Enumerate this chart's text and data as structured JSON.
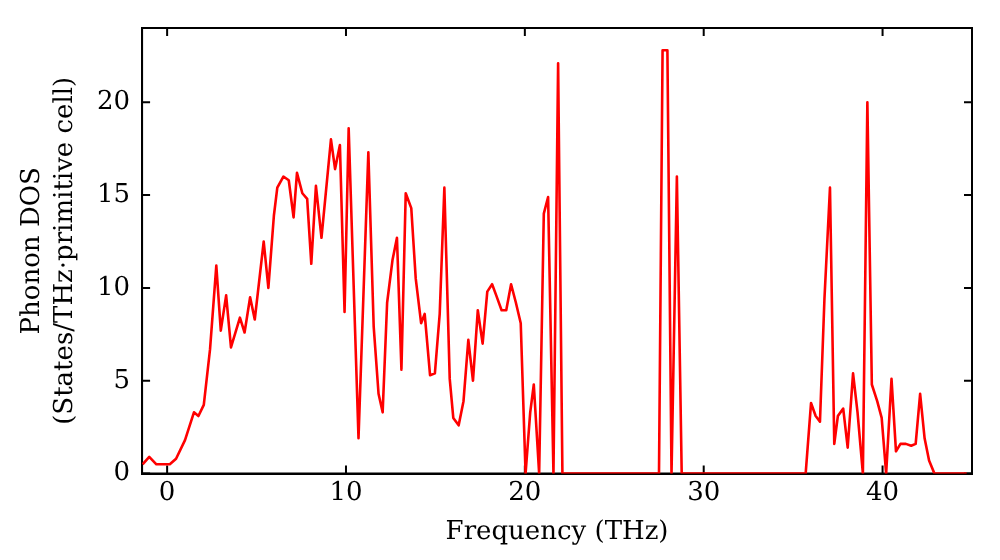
{
  "chart_data": {
    "type": "line",
    "xlabel": "Frequency (THz)",
    "ylabel": "Phonon DOS\n(States/THz·primitive cell)",
    "xlim": [
      -1.4,
      45
    ],
    "ylim": [
      0,
      24
    ],
    "xticks": [
      0,
      10,
      20,
      30,
      40
    ],
    "yticks": [
      0,
      5,
      10,
      15,
      20
    ],
    "grid": false,
    "legend": false,
    "marker": "none",
    "line_style": "solid",
    "series": [
      {
        "color": "#ff0000",
        "x": [
          -1.37,
          -1.0,
          -0.6,
          0.15,
          0.5,
          1.0,
          1.5,
          1.75,
          2.05,
          2.4,
          2.75,
          3.0,
          3.3,
          3.57,
          4.07,
          4.33,
          4.64,
          4.9,
          5.4,
          5.66,
          5.97,
          6.16,
          6.5,
          6.8,
          7.07,
          7.26,
          7.56,
          7.83,
          8.06,
          8.32,
          8.63,
          9.16,
          9.39,
          9.66,
          9.92,
          10.15,
          10.7,
          11.25,
          11.55,
          11.82,
          12.05,
          12.3,
          12.6,
          12.85,
          13.1,
          13.34,
          13.65,
          13.9,
          14.2,
          14.4,
          14.7,
          14.97,
          15.24,
          15.5,
          15.8,
          16.0,
          16.3,
          16.57,
          16.84,
          17.1,
          17.37,
          17.64,
          17.9,
          18.17,
          18.4,
          18.7,
          18.96,
          19.23,
          19.5,
          19.77,
          20.04,
          20.3,
          20.5,
          20.8,
          21.06,
          21.3,
          21.6,
          21.86,
          22.1,
          27.5,
          27.7,
          27.97,
          28.2,
          28.5,
          28.77,
          35.7,
          36.0,
          36.26,
          36.5,
          36.75,
          37.06,
          37.3,
          37.5,
          37.8,
          38.05,
          38.35,
          38.6,
          38.9,
          39.15,
          39.4,
          39.7,
          39.95,
          40.2,
          40.5,
          40.75,
          41.0,
          41.3,
          41.6,
          41.85,
          42.1,
          42.35,
          42.6,
          42.9,
          44.7
        ],
        "values": [
          0.5,
          0.9,
          0.5,
          0.5,
          0.8,
          1.8,
          3.3,
          3.1,
          3.7,
          6.7,
          11.2,
          7.7,
          9.6,
          6.8,
          8.4,
          7.6,
          9.5,
          8.3,
          12.5,
          10.0,
          13.9,
          15.4,
          16.0,
          15.8,
          13.8,
          16.2,
          15.1,
          14.8,
          11.3,
          15.5,
          12.7,
          18.0,
          16.4,
          17.7,
          8.7,
          18.6,
          1.9,
          17.3,
          7.9,
          4.3,
          3.3,
          9.2,
          11.5,
          12.7,
          5.6,
          15.1,
          14.3,
          10.5,
          8.1,
          8.6,
          5.3,
          5.4,
          8.6,
          15.4,
          5.1,
          3.0,
          2.6,
          3.9,
          7.2,
          5.0,
          8.8,
          7.0,
          9.8,
          10.2,
          9.6,
          8.8,
          8.8,
          10.2,
          9.2,
          8.1,
          0,
          3.3,
          4.8,
          0,
          14.0,
          14.9,
          0,
          22.1,
          0,
          0,
          22.8,
          22.8,
          0,
          16.0,
          0,
          0,
          3.8,
          3.1,
          2.8,
          9.4,
          15.4,
          1.6,
          3.1,
          3.5,
          1.4,
          5.4,
          3.3,
          0,
          20.0,
          4.8,
          3.9,
          3.0,
          0,
          5.1,
          1.2,
          1.6,
          1.6,
          1.5,
          1.6,
          4.3,
          1.9,
          0.7,
          0,
          0
        ]
      }
    ]
  }
}
